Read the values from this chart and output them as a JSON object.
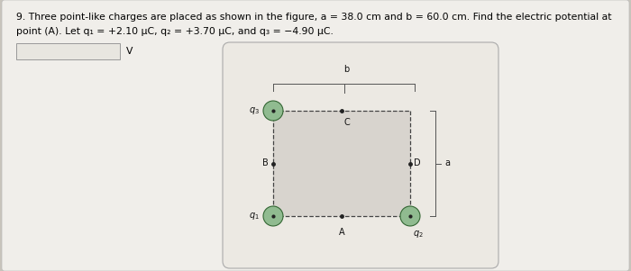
{
  "title_line1": "9. Three point-like charges are placed as shown in the figure, a = 38.0 cm and b = 60.0 cm. Find the electric potential at",
  "title_line2": "point (A). Let q₁ = +2.10 μC, q₂ = +3.70 μC, and q₃ = −4.90 μC.",
  "answer_label": "V",
  "bg_color": "#c8c4bc",
  "panel_color": "#f0eeea",
  "diagram_panel_color": "#ece8e2",
  "diagram_panel_edge": "#aaaaaa",
  "inner_rect_fill": "#d8d4ce",
  "dashed_color": "#444444",
  "charge_fill": "#90bb90",
  "charge_edge": "#336633",
  "dot_color": "#222222",
  "label_color": "#111111",
  "brace_color": "#555555",
  "text_fontsize": 7.8,
  "label_fontsize": 7.0
}
